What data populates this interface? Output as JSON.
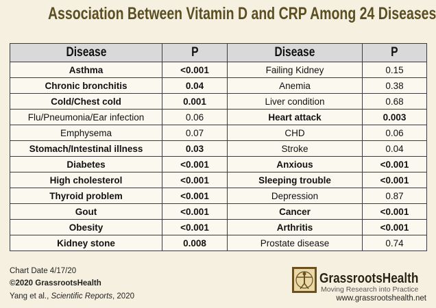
{
  "header": {
    "title": "Association Between Vitamin D and CRP Among 24 Diseases"
  },
  "table": {
    "columns": [
      "Disease",
      "P",
      "Disease",
      "P"
    ],
    "rows": [
      {
        "left": {
          "disease": "Asthma",
          "p": "<0.001",
          "bold": true
        },
        "right": {
          "disease": "Failing Kidney",
          "p": 0.15,
          "bold": false
        }
      },
      {
        "left": {
          "disease": "Chronic bronchitis",
          "p": 0.04,
          "bold": true
        },
        "right": {
          "disease": "Anemia",
          "p": 0.38,
          "bold": false
        }
      },
      {
        "left": {
          "disease": "Cold/Chest cold",
          "p": 0.001,
          "bold": true
        },
        "right": {
          "disease": "Liver condition",
          "p": 0.68,
          "bold": false
        }
      },
      {
        "left": {
          "disease": "Flu/Pneumonia/Ear infection",
          "p": 0.06,
          "bold": false
        },
        "right": {
          "disease": "Heart attack",
          "p": 0.003,
          "bold": true
        }
      },
      {
        "left": {
          "disease": "Emphysema",
          "p": 0.07,
          "bold": false
        },
        "right": {
          "disease": "CHD",
          "p": 0.06,
          "bold": false
        }
      },
      {
        "left": {
          "disease": "Stomach/Intestinal illness",
          "p": 0.03,
          "bold": true
        },
        "right": {
          "disease": "Stroke",
          "p": 0.04,
          "bold": false
        }
      },
      {
        "left": {
          "disease": "Diabetes",
          "p": "<0.001",
          "bold": true
        },
        "right": {
          "disease": "Anxious",
          "p": "<0.001",
          "bold": true
        }
      },
      {
        "left": {
          "disease": "High cholesterol",
          "p": "<0.001",
          "bold": true
        },
        "right": {
          "disease": "Sleeping trouble",
          "p": "<0.001",
          "bold": true
        }
      },
      {
        "left": {
          "disease": "Thyroid problem",
          "p": "<0.001",
          "bold": true
        },
        "right": {
          "disease": "Depression",
          "p": 0.87,
          "bold": false
        }
      },
      {
        "left": {
          "disease": "Gout",
          "p": "<0.001",
          "bold": true
        },
        "right": {
          "disease": "Cancer",
          "p": "<0.001",
          "bold": true
        }
      },
      {
        "left": {
          "disease": "Obesity",
          "p": "<0.001",
          "bold": true
        },
        "right": {
          "disease": "Arthritis",
          "p": "<0.001",
          "bold": true
        }
      },
      {
        "left": {
          "disease": "Kidney stone",
          "p": 0.008,
          "bold": true
        },
        "right": {
          "disease": "Prostate disease",
          "p": 0.74,
          "bold": false
        }
      }
    ]
  },
  "footer": {
    "chart_date": "Chart Date 4/17/20",
    "copyright": "©2020 GrassrootsHealth",
    "citation": {
      "authors": "Yang et al., ",
      "journal": "Scientific Reports",
      "year": ", 2020"
    }
  },
  "logo": {
    "name": "GrassrootsHealth",
    "tagline": "Moving Research into Practice",
    "url": "www.grassrootshealth.net"
  }
}
